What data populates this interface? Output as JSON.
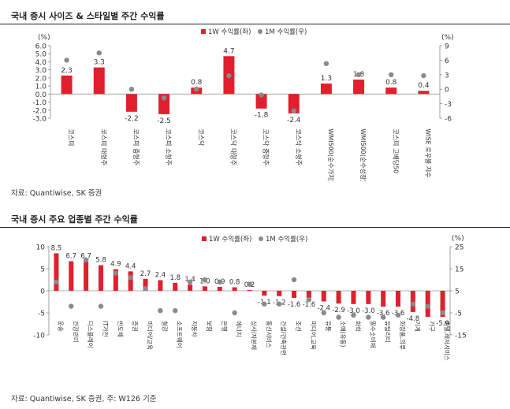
{
  "panel1": {
    "title": "국내 증시 사이즈 & 스타일별 주간 수익률",
    "source": "자료: Quantiwise, SK 증권"
  },
  "panel2": {
    "title": "국내 증시 주요 업종별 주간 수익률",
    "source": "자료: Quantiwise, SK 증권, 주: W126 기준"
  },
  "colors": {
    "bar": "#e0202c",
    "dot": "#8a8a8a"
  },
  "chart_data": [
    {
      "type": "bar",
      "categories": [
        "코스피",
        "코스피 대형주",
        "코스피 중형주",
        "코스피 소형주",
        "코스닥",
        "코스닥 대형주",
        "코스닥 중형주",
        "코스닥 소형주",
        "WMI500(순수가치)",
        "WMI500(순수성장)",
        "코스피 고배당50",
        "WISE 로우볼 지수"
      ],
      "series": [
        {
          "name": "1W 수익률(좌)",
          "type": "bar",
          "axis": "left",
          "values": [
            2.3,
            3.3,
            -2.2,
            -2.5,
            0.8,
            4.7,
            -1.8,
            -2.4,
            1.3,
            1.8,
            0.8,
            0.4
          ]
        },
        {
          "name": "1M 수익률(우)",
          "type": "scatter",
          "axis": "right",
          "values": [
            6.0,
            7.5,
            0.0,
            -1.8,
            0.0,
            2.8,
            -1.2,
            -4.5,
            5.3,
            3.0,
            3.0,
            2.8
          ]
        }
      ],
      "ylabel_left": "(%)",
      "ylabel_right": "(%)",
      "ylim_left": [
        -3.0,
        6.0
      ],
      "yticks_left": [
        "6.0",
        "5.0",
        "4.0",
        "3.0",
        "2.0",
        "1.0",
        "0.0",
        "-1.0",
        "-2.0",
        "-3.0"
      ],
      "ylim_right": [
        -6,
        9
      ],
      "yticks_right": [
        "9",
        "6",
        "3",
        "0",
        "-3",
        "-6"
      ],
      "data_labels": [
        "2.3",
        "3.3",
        "-2.2",
        "-2.5",
        "0.8",
        "4.7",
        "-1.8",
        "-2.4",
        "1.3",
        "1.8",
        "0.8",
        "0.4"
      ],
      "legend_position": "top-right",
      "grid": false
    },
    {
      "type": "bar",
      "categories": [
        "운송",
        "건강관리",
        "디스플레이",
        "IT가전",
        "반도체",
        "증권",
        "미디어/교육",
        "철강",
        "소프트웨어",
        "자동차",
        "보험",
        "은행",
        "에너지",
        "상사/자본재",
        "통신서비스",
        "건설/건축관련",
        "조선",
        "미디어,교육",
        "유통",
        "소매(유통)",
        "화학",
        "필수소비재",
        "유틸리티",
        "화장품,의류",
        "기계",
        "가구",
        "호텔,레저서비스"
      ],
      "series": [
        {
          "name": "1W 수익률(좌)",
          "type": "bar",
          "axis": "left",
          "values": [
            8.5,
            6.7,
            6.7,
            5.8,
            4.9,
            4.4,
            2.7,
            2.4,
            1.8,
            1.4,
            1.0,
            0.9,
            0.8,
            0.2,
            -1.1,
            -1.2,
            -1.6,
            -1.6,
            -2.4,
            -2.9,
            -3.0,
            -3.0,
            -3.6,
            -3.6,
            -4.8,
            -5.9,
            -5.9
          ]
        },
        {
          "name": "1M 수익률(우)",
          "type": "scatter",
          "axis": "right",
          "values": [
            9,
            -2,
            19,
            -2,
            13,
            11,
            6,
            -4,
            -4,
            9,
            10,
            9,
            -5,
            8,
            -1,
            -1,
            10,
            1,
            -5,
            -7,
            -6,
            -7,
            -7,
            -6,
            -1,
            -2,
            -5
          ]
        }
      ],
      "ylabel_left": "",
      "ylabel_right": "(%)",
      "ylim_left": [
        -10,
        10
      ],
      "yticks_left": [
        "10",
        "5",
        "0",
        "-5",
        "-10"
      ],
      "ylim_right": [
        -15,
        25
      ],
      "yticks_right": [
        "25",
        "15",
        "5",
        "-5",
        "-15"
      ],
      "data_labels": [
        "8.5",
        "6.7",
        "6.7",
        "5.8",
        "4.9",
        "4.4",
        "2.7",
        "2.4",
        "1.8",
        "1.4",
        "1.0",
        "0.9",
        "0.8",
        "0.2",
        "-1.1",
        "-1.2",
        "-1.6",
        "-1.6",
        "-2.4",
        "-2.9",
        "-3.0",
        "-3.0",
        "-3.6",
        "-3.6",
        "-4.8",
        "",
        "-5.9"
      ],
      "legend_position": "top-right",
      "grid": false
    }
  ]
}
